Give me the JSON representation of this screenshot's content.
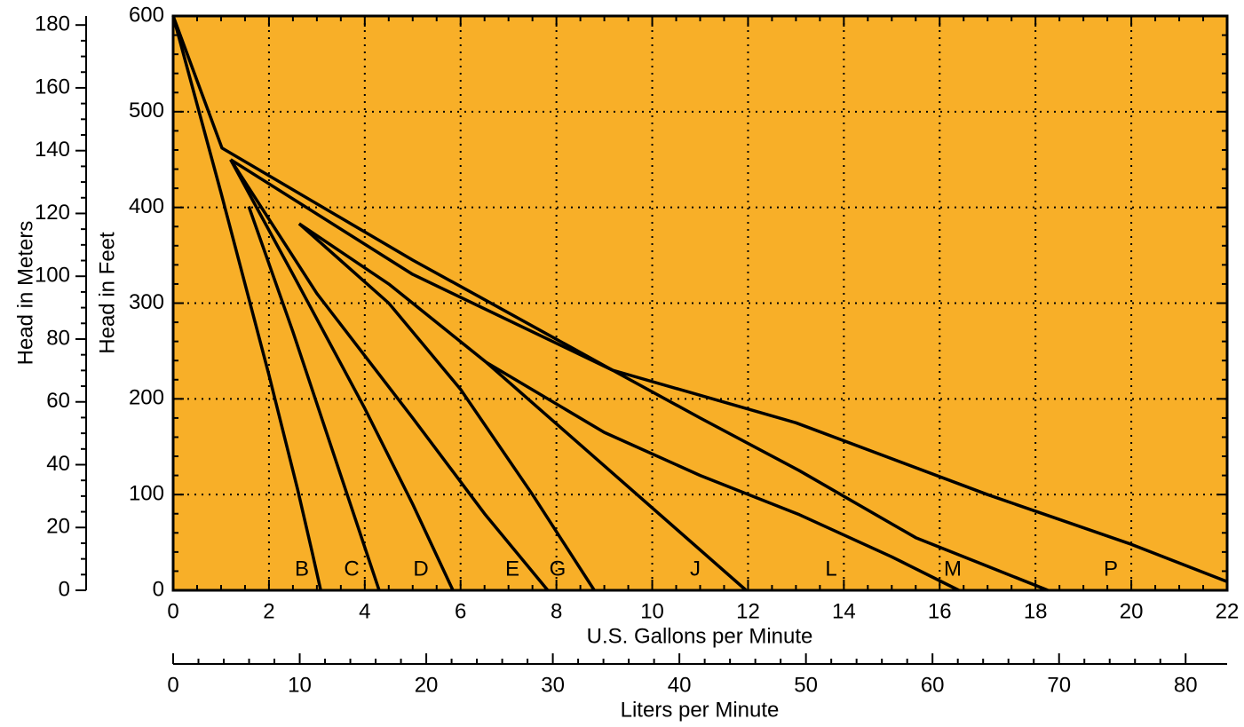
{
  "chart_data": {
    "type": "line",
    "x_label": "U.S. Gallons per Minute",
    "y_label": "Head in Feet",
    "y2_label": "Head in Meters",
    "x2_label": "Liters per Minute",
    "background": "#f8af28",
    "grid": true,
    "xlim": [
      0,
      22
    ],
    "xticks": [
      0,
      2,
      4,
      6,
      8,
      10,
      12,
      14,
      16,
      18,
      20,
      22
    ],
    "xminor": 4,
    "ylim": [
      0,
      600
    ],
    "yticks": [
      0,
      100,
      200,
      300,
      400,
      500,
      600
    ],
    "yminor": 5,
    "y2lim": [
      0,
      182.88
    ],
    "y2ticks": [
      0,
      20,
      40,
      60,
      80,
      100,
      120,
      140,
      160,
      180
    ],
    "y2minor": 4,
    "x2lim": [
      0,
      83.28
    ],
    "x2ticks": [
      0,
      10,
      20,
      30,
      40,
      50,
      60,
      70,
      80
    ],
    "x2minor": 5,
    "series": [
      {
        "name": "B",
        "color": "#000000",
        "x": [
          0,
          1,
          2,
          2.6,
          2.9,
          3.08
        ],
        "values": [
          600,
          415,
          225,
          105,
          40,
          0
        ]
      },
      {
        "name": "C",
        "color": "#000000",
        "x": [
          1.58,
          2.5,
          3.5,
          4.3
        ],
        "values": [
          401,
          270,
          120,
          0
        ]
      },
      {
        "name": "D",
        "color": "#000000",
        "x": [
          1.2,
          2.5,
          4,
          5,
          5.84
        ],
        "values": [
          450,
          330,
          190,
          90,
          0
        ]
      },
      {
        "name": "E",
        "color": "#000000",
        "x": [
          1.2,
          3,
          5,
          6.5,
          7.82
        ],
        "values": [
          450,
          310,
          180,
          80,
          0
        ]
      },
      {
        "name": "G",
        "color": "#000000",
        "x": [
          2.63,
          4.5,
          6,
          7.5,
          8.79
        ],
        "values": [
          383,
          300,
          210,
          100,
          0
        ]
      },
      {
        "name": "J",
        "color": "#000000",
        "x": [
          2.63,
          4.5,
          6.54,
          9,
          11.96
        ],
        "values": [
          383,
          320,
          238,
          130,
          0
        ]
      },
      {
        "name": "L",
        "color": "#000000",
        "x": [
          6.54,
          9,
          11,
          13.07,
          15,
          16.4
        ],
        "values": [
          238,
          165,
          120,
          79,
          35,
          0
        ]
      },
      {
        "name": "M",
        "color": "#000000",
        "x": [
          1.2,
          5,
          9.17,
          11,
          13.07,
          15.5,
          18.26
        ],
        "values": [
          450,
          330,
          230,
          180,
          125,
          55,
          0
        ]
      },
      {
        "name": "P",
        "color": "#000000",
        "x": [
          0,
          1.02,
          5,
          9.17,
          13,
          17,
          20,
          22
        ],
        "values": [
          600,
          462,
          345,
          230,
          175,
          100,
          48,
          9
        ]
      }
    ]
  }
}
